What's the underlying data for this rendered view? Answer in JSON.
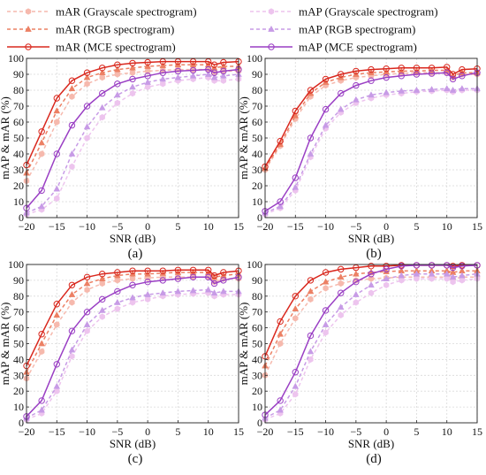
{
  "legend": [
    {
      "label": "mAR (Grayscale spectrogram)",
      "color": "#f6b9ad",
      "dash": "4,3",
      "marker": "hexagon"
    },
    {
      "label": "mAR (RGB spectrogram)",
      "color": "#ec8064",
      "dash": "4,3",
      "marker": "triangle"
    },
    {
      "label": "mAR (MCE spectrogram)",
      "color": "#d9281e",
      "dash": "",
      "marker": "circle"
    },
    {
      "label": "mAP (Grayscale spectrogram)",
      "color": "#edc4ee",
      "dash": "4,3",
      "marker": "hexagon"
    },
    {
      "label": "mAP (RGB spectrogram)",
      "color": "#c79be6",
      "dash": "4,3",
      "marker": "triangle"
    },
    {
      "label": "mAP (MCE spectrogram)",
      "color": "#9a3fc4",
      "dash": "",
      "marker": "circle"
    }
  ],
  "chart_data": [
    {
      "type": "line",
      "panel_label": "(a)",
      "xlabel": "SNR (dB)",
      "ylabel": "mAP & mAR (%)",
      "xlim": [
        -20,
        15
      ],
      "ylim": [
        0,
        100
      ],
      "xticks": [
        -20,
        -15,
        -10,
        -5,
        0,
        5,
        10,
        15
      ],
      "yticks": [
        0,
        10,
        20,
        30,
        40,
        50,
        60,
        70,
        80,
        90,
        100
      ],
      "yticklabels": [
        "0",
        "10",
        "20",
        "30",
        "40",
        "50",
        "60",
        "70",
        "80",
        "90",
        "100"
      ],
      "grid": true,
      "series": [
        {
          "name": "mAR (Grayscale spectrogram)",
          "x": [
            -20,
            -17.5,
            -15,
            -12.5,
            -10,
            -7.5,
            -5,
            -2.5,
            0,
            2.5,
            5,
            7.5,
            10,
            11,
            12.5,
            15
          ],
          "values": [
            23,
            40,
            60,
            76,
            84,
            88,
            90,
            91,
            92,
            92.5,
            93,
            93,
            93,
            91,
            92,
            92
          ]
        },
        {
          "name": "mAR (RGB spectrogram)",
          "x": [
            -20,
            -17.5,
            -15,
            -12.5,
            -10,
            -7.5,
            -5,
            -2.5,
            0,
            2.5,
            5,
            7.5,
            10,
            11,
            12.5,
            15
          ],
          "values": [
            28,
            47,
            67,
            81,
            88,
            91,
            93,
            94,
            95,
            95.5,
            96,
            96,
            96,
            94,
            95,
            95
          ]
        },
        {
          "name": "mAR (MCE spectrogram)",
          "x": [
            -20,
            -17.5,
            -15,
            -12.5,
            -10,
            -7.5,
            -5,
            -2.5,
            0,
            2.5,
            5,
            7.5,
            10,
            11,
            12.5,
            15
          ],
          "values": [
            33,
            54,
            75,
            86,
            91,
            94,
            96,
            97,
            97.5,
            98,
            98,
            98,
            98,
            96,
            97.5,
            98
          ]
        },
        {
          "name": "mAP (Grayscale spectrogram)",
          "x": [
            -20,
            -17.5,
            -15,
            -12.5,
            -10,
            -7.5,
            -5,
            -2.5,
            0,
            2.5,
            5,
            7.5,
            10,
            11,
            12.5,
            15
          ],
          "values": [
            2,
            5,
            12,
            32,
            50,
            63,
            72,
            78,
            82,
            84,
            86,
            87,
            88,
            86,
            86,
            87
          ]
        },
        {
          "name": "mAP (RGB spectrogram)",
          "x": [
            -20,
            -17.5,
            -15,
            -12.5,
            -10,
            -7.5,
            -5,
            -2.5,
            0,
            2.5,
            5,
            7.5,
            10,
            11,
            12.5,
            15
          ],
          "values": [
            3,
            7,
            18,
            40,
            57,
            69,
            77,
            82,
            85,
            87,
            88,
            89,
            90,
            88,
            89,
            90
          ]
        },
        {
          "name": "mAP (MCE spectrogram)",
          "x": [
            -20,
            -17.5,
            -15,
            -12.5,
            -10,
            -7.5,
            -5,
            -2.5,
            0,
            2.5,
            5,
            7.5,
            10,
            11,
            12.5,
            15
          ],
          "values": [
            6,
            17,
            40,
            58,
            70,
            78,
            84,
            87,
            89,
            91,
            92,
            92.5,
            93,
            91,
            92,
            93
          ]
        }
      ]
    },
    {
      "type": "line",
      "panel_label": "(b)",
      "xlabel": "SNR (dB)",
      "ylabel": "mAP & mAR (%)",
      "xlim": [
        -20,
        15
      ],
      "ylim": [
        0,
        100
      ],
      "xticks": [
        -20,
        -15,
        -10,
        -5,
        0,
        5,
        10,
        15
      ],
      "yticks": [
        0,
        10,
        20,
        30,
        40,
        50,
        60,
        70,
        80,
        90,
        100
      ],
      "yticklabels": [
        "0",
        "10",
        "20",
        "30",
        "40",
        "50",
        "60",
        "70",
        "80",
        "90",
        "100"
      ],
      "grid": true,
      "series": [
        {
          "name": "mAR (Grayscale spectrogram)",
          "x": [
            -20,
            -17.5,
            -15,
            -12.5,
            -10,
            -7.5,
            -5,
            -2.5,
            0,
            2.5,
            5,
            7.5,
            10,
            11,
            12.5,
            15
          ],
          "values": [
            30,
            45,
            62,
            76,
            83,
            86,
            88,
            89,
            90,
            90.5,
            91,
            91,
            91,
            88,
            90,
            90
          ]
        },
        {
          "name": "mAR (RGB spectrogram)",
          "x": [
            -20,
            -17.5,
            -15,
            -12.5,
            -10,
            -7.5,
            -5,
            -2.5,
            0,
            2.5,
            5,
            7.5,
            10,
            11,
            12.5,
            15
          ],
          "values": [
            31,
            46,
            64,
            78,
            85,
            88,
            90,
            91,
            91.5,
            92,
            92,
            92.5,
            92.5,
            89,
            91,
            91
          ]
        },
        {
          "name": "mAR (MCE spectrogram)",
          "x": [
            -20,
            -17.5,
            -15,
            -12.5,
            -10,
            -7.5,
            -5,
            -2.5,
            0,
            2.5,
            5,
            7.5,
            10,
            11,
            12.5,
            15
          ],
          "values": [
            32,
            48,
            67,
            80,
            87,
            90,
            92,
            93,
            93.5,
            94,
            94,
            94,
            94.5,
            90,
            93,
            93.5
          ]
        },
        {
          "name": "mAP (Grayscale spectrogram)",
          "x": [
            -20,
            -17.5,
            -15,
            -12.5,
            -10,
            -7.5,
            -5,
            -2.5,
            0,
            2.5,
            5,
            7.5,
            10,
            11,
            12.5,
            15
          ],
          "values": [
            2,
            6,
            17,
            38,
            56,
            66,
            72,
            75,
            77,
            78,
            79,
            79.5,
            80,
            79,
            80,
            80
          ]
        },
        {
          "name": "mAP (RGB spectrogram)",
          "x": [
            -20,
            -17.5,
            -15,
            -12.5,
            -10,
            -7.5,
            -5,
            -2.5,
            0,
            2.5,
            5,
            7.5,
            10,
            11,
            12.5,
            15
          ],
          "values": [
            3,
            7,
            19,
            40,
            58,
            68,
            74,
            77,
            78.5,
            79.5,
            80,
            80.5,
            81,
            80,
            81,
            81
          ]
        },
        {
          "name": "mAP (MCE spectrogram)",
          "x": [
            -20,
            -17.5,
            -15,
            -12.5,
            -10,
            -7.5,
            -5,
            -2.5,
            0,
            2.5,
            5,
            7.5,
            10,
            11,
            12.5,
            15
          ],
          "values": [
            4,
            10,
            25,
            50,
            68,
            78,
            83,
            86,
            88,
            89,
            90,
            90.5,
            91,
            87,
            89,
            91
          ]
        }
      ]
    },
    {
      "type": "line",
      "panel_label": "(c)",
      "xlabel": "SNR (dB)",
      "ylabel": "mAP & mAR (%)",
      "xlim": [
        -20,
        15
      ],
      "ylim": [
        0,
        100
      ],
      "xticks": [
        -20,
        -15,
        -10,
        -5,
        0,
        5,
        10,
        15
      ],
      "yticks": [
        0,
        10,
        20,
        30,
        40,
        50,
        60,
        70,
        80,
        90,
        100
      ],
      "yticklabels": [
        "0",
        "10",
        "20",
        "30",
        "40",
        "50",
        "60",
        "70",
        "80",
        "90",
        "100"
      ],
      "grid": true,
      "series": [
        {
          "name": "mAR (Grayscale spectrogram)",
          "x": [
            -20,
            -17.5,
            -15,
            -12.5,
            -10,
            -7.5,
            -5,
            -2.5,
            0,
            2.5,
            5,
            7.5,
            10,
            11,
            12.5,
            15
          ],
          "values": [
            28,
            45,
            62,
            76,
            84,
            88,
            90,
            91,
            91.5,
            92,
            92,
            92,
            92,
            89,
            91,
            91
          ]
        },
        {
          "name": "mAR (RGB spectrogram)",
          "x": [
            -20,
            -17.5,
            -15,
            -12.5,
            -10,
            -7.5,
            -5,
            -2.5,
            0,
            2.5,
            5,
            7.5,
            10,
            11,
            12.5,
            15
          ],
          "values": [
            32,
            50,
            68,
            81,
            88,
            91,
            93,
            94,
            94,
            94.5,
            95,
            95,
            95,
            92,
            93,
            94
          ]
        },
        {
          "name": "mAR (MCE spectrogram)",
          "x": [
            -20,
            -17.5,
            -15,
            -12.5,
            -10,
            -7.5,
            -5,
            -2.5,
            0,
            2.5,
            5,
            7.5,
            10,
            11,
            12.5,
            15
          ],
          "values": [
            36,
            56,
            75,
            87,
            92,
            94,
            95,
            96,
            96,
            96,
            96.5,
            96.5,
            96.5,
            93,
            95,
            96
          ]
        },
        {
          "name": "mAP (Grayscale spectrogram)",
          "x": [
            -20,
            -17.5,
            -15,
            -12.5,
            -10,
            -7.5,
            -5,
            -2.5,
            0,
            2.5,
            5,
            7.5,
            10,
            11,
            12.5,
            15
          ],
          "values": [
            2,
            6,
            20,
            42,
            58,
            67,
            72,
            76,
            78,
            80,
            81,
            81.5,
            82,
            80,
            81,
            81
          ]
        },
        {
          "name": "mAP (RGB spectrogram)",
          "x": [
            -20,
            -17.5,
            -15,
            -12.5,
            -10,
            -7.5,
            -5,
            -2.5,
            0,
            2.5,
            5,
            7.5,
            10,
            11,
            12.5,
            15
          ],
          "values": [
            3,
            8,
            23,
            46,
            62,
            71,
            76,
            79,
            81,
            82,
            83,
            83.5,
            84,
            82,
            83,
            83
          ]
        },
        {
          "name": "mAP (MCE spectrogram)",
          "x": [
            -20,
            -17.5,
            -15,
            -12.5,
            -10,
            -7.5,
            -5,
            -2.5,
            0,
            2.5,
            5,
            7.5,
            10,
            11,
            12.5,
            15
          ],
          "values": [
            4,
            14,
            37,
            58,
            70,
            78,
            83,
            87,
            89,
            90,
            91,
            92,
            92,
            88,
            90,
            92
          ]
        }
      ]
    },
    {
      "type": "line",
      "panel_label": "(d)",
      "xlabel": "SNR (dB)",
      "ylabel": "mAP & mAR (%)",
      "xlim": [
        -20,
        15
      ],
      "ylim": [
        0,
        100
      ],
      "xticks": [
        -20,
        -15,
        -10,
        -5,
        0,
        5,
        10,
        15
      ],
      "yticks": [
        0,
        10,
        20,
        30,
        40,
        50,
        60,
        70,
        80,
        90,
        100
      ],
      "yticklabels": [
        "0",
        "10",
        "20",
        "30",
        "40",
        "50",
        "60",
        "70",
        "80",
        "90",
        "100"
      ],
      "grid": true,
      "series": [
        {
          "name": "mAR (Grayscale spectrogram)",
          "x": [
            -20,
            -17.5,
            -15,
            -12.5,
            -10,
            -7.5,
            -5,
            -2.5,
            0,
            2.5,
            5,
            7.5,
            10,
            11,
            12.5,
            15
          ],
          "values": [
            30,
            50,
            66,
            78,
            85,
            88,
            90,
            91,
            91.5,
            92,
            92,
            92,
            92,
            91,
            92,
            92
          ]
        },
        {
          "name": "mAR (RGB spectrogram)",
          "x": [
            -20,
            -17.5,
            -15,
            -12.5,
            -10,
            -7.5,
            -5,
            -2.5,
            0,
            2.5,
            5,
            7.5,
            10,
            11,
            12.5,
            15
          ],
          "values": [
            36,
            56,
            72,
            83,
            89,
            92,
            94,
            95,
            95.5,
            96,
            96,
            96,
            96,
            95,
            96,
            96
          ]
        },
        {
          "name": "mAR (MCE spectrogram)",
          "x": [
            -20,
            -17.5,
            -15,
            -12.5,
            -10,
            -7.5,
            -5,
            -2.5,
            0,
            2.5,
            5,
            7.5,
            10,
            11,
            12.5,
            15
          ],
          "values": [
            42,
            64,
            80,
            90,
            95,
            97,
            98,
            99,
            99,
            99.5,
            99.5,
            99.5,
            99.5,
            99,
            99.5,
            99.5
          ]
        },
        {
          "name": "mAP (Grayscale spectrogram)",
          "x": [
            -20,
            -17.5,
            -15,
            -12.5,
            -10,
            -7.5,
            -5,
            -2.5,
            0,
            2.5,
            5,
            7.5,
            10,
            11,
            12.5,
            15
          ],
          "values": [
            2,
            6,
            18,
            40,
            57,
            68,
            76,
            82,
            87,
            90,
            91,
            91,
            91,
            89,
            90,
            91
          ]
        },
        {
          "name": "mAP (RGB spectrogram)",
          "x": [
            -20,
            -17.5,
            -15,
            -12.5,
            -10,
            -7.5,
            -5,
            -2.5,
            0,
            2.5,
            5,
            7.5,
            10,
            11,
            12.5,
            15
          ],
          "values": [
            3,
            8,
            23,
            45,
            62,
            73,
            81,
            87,
            91,
            93,
            94,
            94,
            94,
            92,
            93,
            94
          ]
        },
        {
          "name": "mAP (MCE spectrogram)",
          "x": [
            -20,
            -17.5,
            -15,
            -12.5,
            -10,
            -7.5,
            -5,
            -2.5,
            0,
            2.5,
            5,
            7.5,
            10,
            11,
            12.5,
            15
          ],
          "values": [
            5,
            14,
            32,
            55,
            71,
            82,
            89,
            94,
            97,
            99,
            99.5,
            99.5,
            99.5,
            98,
            99,
            99.5
          ]
        }
      ]
    }
  ]
}
